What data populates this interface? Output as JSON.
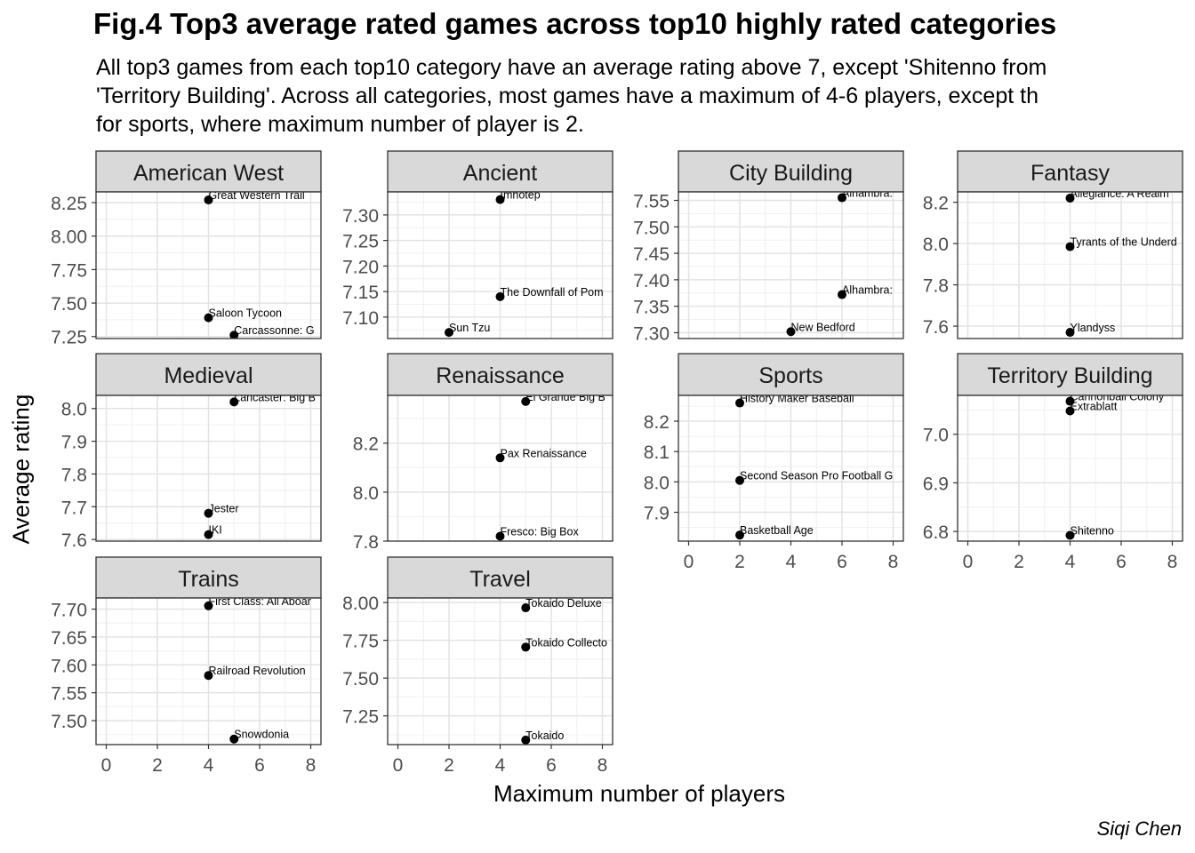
{
  "chart_data": {
    "type": "scatter",
    "title": "Fig.4 Top3 average rated games across top10 highly rated categories",
    "subtitle_lines": [
      "All top3 games from each top10 category have an average rating above 7, except 'Shitenno from",
      "'Territory Building'. Across all categories, most games have a maximum of 4-6 players, except th",
      "for sports, where maximum number of player is 2."
    ],
    "xlabel": "Maximum number of players",
    "ylabel": "Average rating",
    "caption": "Siqi Chen",
    "xlim": [
      -0.4,
      8.4
    ],
    "x_ticks": [
      0,
      2,
      4,
      6,
      8
    ],
    "grid": true,
    "facets": [
      {
        "name": "American West",
        "ylim": [
          7.235,
          8.33
        ],
        "y_ticks": [
          "7.25",
          "7.50",
          "7.75",
          "8.00",
          "8.25"
        ],
        "points": [
          {
            "x": 4,
            "y": 8.27,
            "label": "Great Western Trail"
          },
          {
            "x": 4,
            "y": 7.39,
            "label": "Saloon Tycoon"
          },
          {
            "x": 5,
            "y": 7.26,
            "label": "Carcassonne: G"
          }
        ]
      },
      {
        "name": "Ancient",
        "ylim": [
          7.058,
          7.345
        ],
        "y_ticks": [
          "7.10",
          "7.15",
          "7.20",
          "7.25",
          "7.30"
        ],
        "points": [
          {
            "x": 4,
            "y": 7.33,
            "label": "Imhotep"
          },
          {
            "x": 4,
            "y": 7.14,
            "label": "The Downfall of Pom"
          },
          {
            "x": 2,
            "y": 7.07,
            "label": "Sun Tzu"
          }
        ]
      },
      {
        "name": "City Building",
        "ylim": [
          7.289,
          7.566
        ],
        "y_ticks": [
          "7.30",
          "7.35",
          "7.40",
          "7.45",
          "7.50",
          "7.55"
        ],
        "points": [
          {
            "x": 6,
            "y": 7.555,
            "label": "Alhambra: "
          },
          {
            "x": 6,
            "y": 7.372,
            "label": "Alhambra: "
          },
          {
            "x": 4,
            "y": 7.302,
            "label": "New Bedford"
          }
        ]
      },
      {
        "name": "Fantasy",
        "ylim": [
          7.54,
          8.25
        ],
        "y_ticks": [
          "7.6",
          "7.8",
          "8.0",
          "8.2"
        ],
        "points": [
          {
            "x": 4,
            "y": 8.22,
            "label": "Allegiance: A Realm"
          },
          {
            "x": 4,
            "y": 7.985,
            "label": "Tyrants of the Underd"
          },
          {
            "x": 4,
            "y": 7.57,
            "label": "Ylandyss"
          }
        ]
      },
      {
        "name": "Medieval",
        "ylim": [
          7.595,
          8.04
        ],
        "y_ticks": [
          "7.6",
          "7.7",
          "7.8",
          "7.9",
          "8.0"
        ],
        "points": [
          {
            "x": 5,
            "y": 8.02,
            "label": "Lancaster: Big B"
          },
          {
            "x": 4,
            "y": 7.68,
            "label": "Jester"
          },
          {
            "x": 4,
            "y": 7.615,
            "label": "IKI"
          }
        ]
      },
      {
        "name": "Renaissance",
        "ylim": [
          7.8,
          8.395
        ],
        "y_ticks": [
          "7.8",
          "8.0",
          "8.2"
        ],
        "points": [
          {
            "x": 5,
            "y": 8.37,
            "label": "El Grande Big B"
          },
          {
            "x": 4,
            "y": 8.14,
            "label": "Pax Renaissance"
          },
          {
            "x": 4,
            "y": 7.82,
            "label": "Fresco: Big Box"
          }
        ]
      },
      {
        "name": "Sports",
        "ylim": [
          7.805,
          8.285
        ],
        "y_ticks": [
          "7.9",
          "8.0",
          "8.1",
          "8.2"
        ],
        "points": [
          {
            "x": 2,
            "y": 8.26,
            "label": "History Maker Baseball"
          },
          {
            "x": 2,
            "y": 8.005,
            "label": "Second Season Pro Football G"
          },
          {
            "x": 2,
            "y": 7.825,
            "label": "Basketball Age"
          }
        ]
      },
      {
        "name": "Territory Building",
        "ylim": [
          6.78,
          7.08
        ],
        "y_ticks": [
          "6.8",
          "6.9",
          "7.0"
        ],
        "points": [
          {
            "x": 4,
            "y": 7.068,
            "label": "Cannonball Colony"
          },
          {
            "x": 4,
            "y": 7.048,
            "label": "Extrablatt"
          },
          {
            "x": 4,
            "y": 6.792,
            "label": "Shitenno"
          }
        ]
      },
      {
        "name": "Trains",
        "ylim": [
          7.457,
          7.72
        ],
        "y_ticks": [
          "7.50",
          "7.55",
          "7.60",
          "7.65",
          "7.70"
        ],
        "points": [
          {
            "x": 4,
            "y": 7.706,
            "label": "First Class: All Aboar"
          },
          {
            "x": 4,
            "y": 7.581,
            "label": "Railroad Revolution"
          },
          {
            "x": 5,
            "y": 7.467,
            "label": "Snowdonia"
          }
        ]
      },
      {
        "name": "Travel",
        "ylim": [
          7.06,
          8.03
        ],
        "y_ticks": [
          "7.25",
          "7.50",
          "7.75",
          "8.00"
        ],
        "points": [
          {
            "x": 5,
            "y": 7.965,
            "label": "Tokaido Deluxe"
          },
          {
            "x": 5,
            "y": 7.705,
            "label": "Tokaido Collecto"
          },
          {
            "x": 5,
            "y": 7.09,
            "label": "Tokaido"
          }
        ]
      }
    ]
  }
}
